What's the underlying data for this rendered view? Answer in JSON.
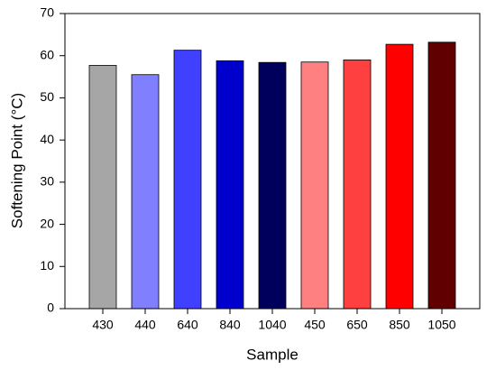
{
  "chart_data": {
    "type": "bar",
    "xlabel": "Sample",
    "ylabel": "Softening Point (°C)",
    "categories": [
      "430",
      "440",
      "640",
      "840",
      "1040",
      "450",
      "650",
      "850",
      "1050"
    ],
    "values": [
      57.7,
      55.5,
      61.3,
      58.8,
      58.4,
      58.5,
      59.0,
      62.7,
      63.2
    ],
    "colors": [
      "#a6a6a6",
      "#8080ff",
      "#4040ff",
      "#0000cc",
      "#00005c",
      "#ff8080",
      "#ff4040",
      "#ff0000",
      "#600000"
    ],
    "ylim": [
      0,
      70
    ],
    "yticks": [
      0,
      10,
      20,
      30,
      40,
      50,
      60,
      70
    ],
    "grid": false
  }
}
